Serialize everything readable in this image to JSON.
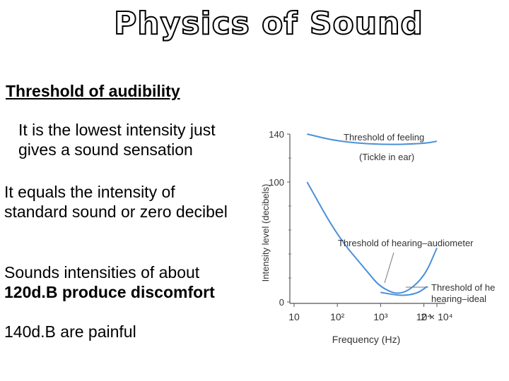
{
  "slide": {
    "title": "Physics of Sound",
    "subtitle": "Threshold of audibility",
    "p1": "It is the lowest intensity just gives a sound sensation",
    "p2": "It equals the intensity of standard sound or zero decibel",
    "p3a": "Sounds intensities of about",
    "p3b": "120d.B produce discomfort",
    "p4": "140d.B are painful"
  },
  "chart_data": {
    "type": "line",
    "xlabel": "Frequency (Hz)",
    "ylabel": "Intensity level (decibels)",
    "x_scale": "log",
    "x_ticks": [
      "10",
      "10²",
      "10³",
      "10⁴",
      "2 × 10⁴"
    ],
    "y_ticks": [
      "0",
      "100",
      "140"
    ],
    "ylim": [
      0,
      140
    ],
    "series": [
      {
        "name": "Threshold of feeling",
        "sub": "(Tickle in ear)",
        "color": "#4a90d9",
        "points": [
          [
            20,
            140
          ],
          [
            100,
            134
          ],
          [
            1000,
            131
          ],
          [
            10000,
            132
          ],
          [
            20000,
            134
          ]
        ]
      },
      {
        "name": "Threshold of hearing–audiometer",
        "color": "#4a90d9",
        "points": [
          [
            20,
            100
          ],
          [
            100,
            55
          ],
          [
            500,
            25
          ],
          [
            1000,
            12
          ],
          [
            3000,
            5
          ],
          [
            10000,
            20
          ],
          [
            20000,
            45
          ]
        ]
      },
      {
        "name": "Threshold of hearing–ideal",
        "color": "#4a90d9",
        "points": [
          [
            1000,
            8
          ],
          [
            3000,
            5
          ],
          [
            7000,
            7
          ],
          [
            12000,
            13
          ]
        ]
      }
    ]
  }
}
